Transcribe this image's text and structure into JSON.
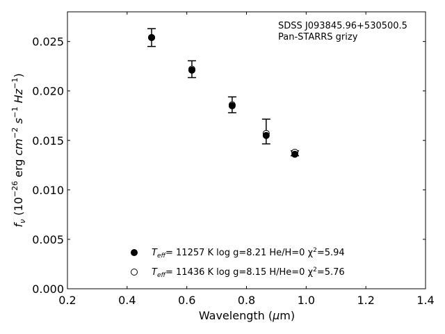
{
  "chart_data": {
    "type": "scatter",
    "xlabel": "Wavelength (μm)",
    "ylabel": "f_ν (10^-26 erg cm^-2 s^-1 Hz^-1)",
    "xlim": [
      0.2,
      1.4
    ],
    "ylim": [
      0.0,
      0.028
    ],
    "x_ticks": [
      "0.2",
      "0.4",
      "0.6",
      "0.8",
      "1.0",
      "1.2",
      "1.4"
    ],
    "y_ticks": [
      "0.000",
      "0.005",
      "0.010",
      "0.015",
      "0.020",
      "0.025"
    ],
    "grid": false,
    "annotations": [
      "SDSS J093845.96+530500.5",
      "Pan-STARRS grizy"
    ],
    "observed": {
      "x": [
        0.482,
        0.617,
        0.752,
        0.866,
        0.962
      ],
      "y": [
        0.0254,
        0.0222,
        0.0186,
        0.0159,
        0.0137
      ],
      "yerr": [
        0.0009,
        0.00085,
        0.0008,
        0.00125,
        0.00025
      ]
    },
    "series": [
      {
        "name": "T_eff= 11257 K  log g=8.21  He/H=0  χ²=5.94",
        "marker": "filled-circle",
        "x": [
          0.482,
          0.617,
          0.752,
          0.866,
          0.962
        ],
        "y": [
          0.0254,
          0.0221,
          0.0185,
          0.0155,
          0.0136
        ]
      },
      {
        "name": "T_eff= 11436 K  log g=8.15  H/He=0  χ²=5.76",
        "marker": "open-circle",
        "x": [
          0.482,
          0.617,
          0.752,
          0.866,
          0.962
        ],
        "y": [
          0.0254,
          0.0222,
          0.0186,
          0.0157,
          0.0138
        ]
      }
    ],
    "legend": {
      "position": "lower-center",
      "entries": [
        {
          "teff": "T",
          "teff_sub": "eff",
          "rest": "= 11257 K  log g=8.21  He/H=0  χ",
          "chi_sup": "2",
          "chi_val": "=5.94",
          "marker": "filled-circle"
        },
        {
          "teff": "T",
          "teff_sub": "eff",
          "rest": "= 11436 K  log g=8.15  H/He=0  χ",
          "chi_sup": "2",
          "chi_val": "=5.76",
          "marker": "open-circle"
        }
      ]
    },
    "ylabel_parts": {
      "f": "f",
      "nu": "ν",
      "a": " (10",
      "e1": "−26",
      "b": " erg ",
      "cm": "cm",
      "e2": "−2",
      "s": " s",
      "e3": "−1",
      "hz": " Hz",
      "e4": "−1",
      "c": ")"
    },
    "xlabel_parts": {
      "a": "Wavelength (",
      "mu": "μ",
      "b": "m)"
    }
  }
}
